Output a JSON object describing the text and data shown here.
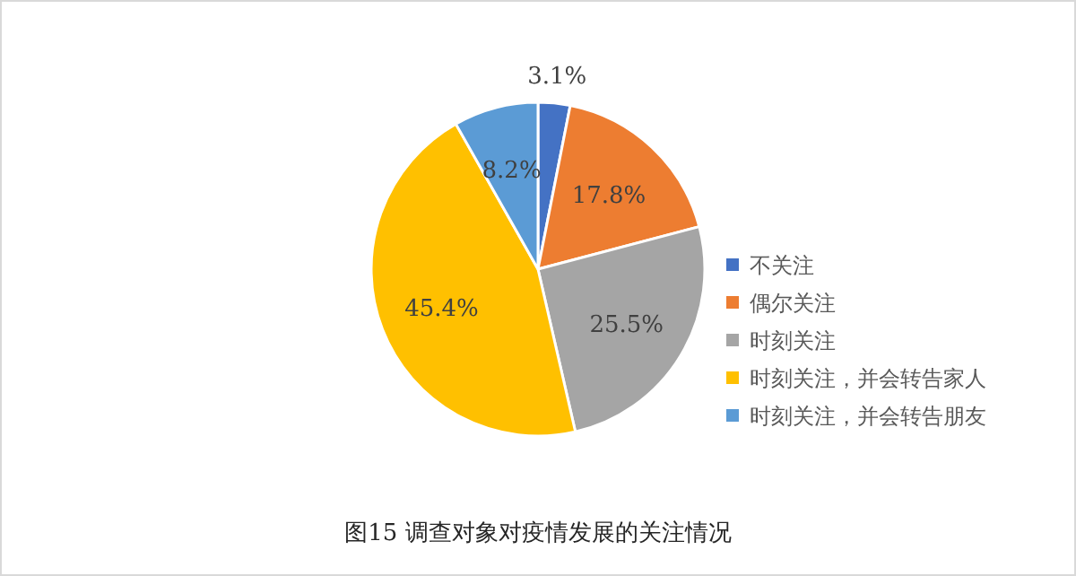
{
  "chart_data": {
    "type": "pie",
    "title": "图15 调查对象对疫情发展的关注情况",
    "categories": [
      "不关注",
      "偶尔关注",
      "时刻关注",
      "时刻关注，并会转告家人",
      "时刻关注，并会转告朋友"
    ],
    "values": [
      3.1,
      17.8,
      25.5,
      45.4,
      8.2
    ],
    "value_labels": [
      "3.1%",
      "17.8%",
      "25.5%",
      "45.4%",
      "8.2%"
    ],
    "colors": [
      "#4472c4",
      "#ed7d31",
      "#a5a5a5",
      "#ffc000",
      "#5b9bd5"
    ],
    "legend": "right"
  }
}
